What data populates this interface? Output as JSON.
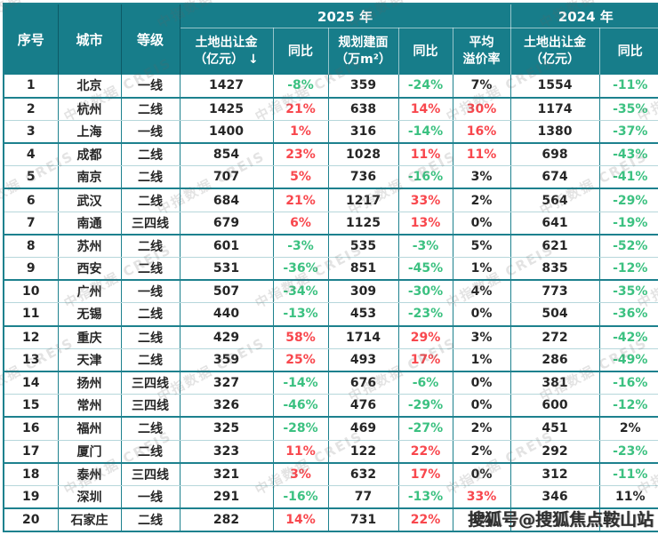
{
  "watermark": {
    "tile_text": "中指数据 CREIS",
    "overlay_text": "搜狐号@搜狐焦点鞍山站"
  },
  "colors": {
    "header_bg": "#177d8a",
    "border_teal": "#1d818e",
    "increase_red": "#f8474d",
    "decrease_green": "#3cc181",
    "text": "#262626"
  },
  "chart_data": {
    "type": "table",
    "group_headers": [
      {
        "label": "2025 年",
        "colspan": 5
      },
      {
        "label": "2024 年",
        "colspan": 2
      }
    ],
    "stub_headers": [
      "序号",
      "城市",
      "等级"
    ],
    "columns": {
      "land2025": {
        "line1": "土地出让金",
        "line2": "（亿元） ↓"
      },
      "yoy2025": {
        "label": "同比"
      },
      "area2025": {
        "line1": "规划建面",
        "line2": "（万m²）"
      },
      "area_yoy": {
        "label": "同比"
      },
      "premium": {
        "line1": "平均",
        "line2": "溢价率"
      },
      "land2024": {
        "line1": "土地出让金",
        "line2": "（亿元）"
      },
      "yoy2024": {
        "label": "同比"
      }
    },
    "rows": [
      {
        "no": "1",
        "city": "北京",
        "tier": "一线",
        "land2025": "1427",
        "yoy2025": "-8%",
        "yoy2025_tone": "down",
        "area2025": "359",
        "area_yoy": "-24%",
        "area_yoy_tone": "down",
        "premium": "7%",
        "premium_tone": "flat",
        "land2024": "1554",
        "yoy2024": "-11%",
        "yoy2024_tone": "down"
      },
      {
        "no": "2",
        "city": "杭州",
        "tier": "二线",
        "land2025": "1425",
        "yoy2025": "21%",
        "yoy2025_tone": "up",
        "area2025": "638",
        "area_yoy": "14%",
        "area_yoy_tone": "up",
        "premium": "30%",
        "premium_tone": "up",
        "land2024": "1174",
        "yoy2024": "-35%",
        "yoy2024_tone": "down"
      },
      {
        "no": "3",
        "city": "上海",
        "tier": "一线",
        "land2025": "1400",
        "yoy2025": "1%",
        "yoy2025_tone": "up",
        "area2025": "316",
        "area_yoy": "-14%",
        "area_yoy_tone": "down",
        "premium": "16%",
        "premium_tone": "up",
        "land2024": "1380",
        "yoy2024": "-37%",
        "yoy2024_tone": "down"
      },
      {
        "no": "4",
        "city": "成都",
        "tier": "二线",
        "land2025": "854",
        "yoy2025": "23%",
        "yoy2025_tone": "up",
        "area2025": "1028",
        "area_yoy": "11%",
        "area_yoy_tone": "up",
        "premium": "11%",
        "premium_tone": "up",
        "land2024": "698",
        "yoy2024": "-43%",
        "yoy2024_tone": "down"
      },
      {
        "no": "5",
        "city": "南京",
        "tier": "二线",
        "land2025": "707",
        "yoy2025": "5%",
        "yoy2025_tone": "up",
        "area2025": "736",
        "area_yoy": "-16%",
        "area_yoy_tone": "down",
        "premium": "3%",
        "premium_tone": "flat",
        "land2024": "674",
        "yoy2024": "-41%",
        "yoy2024_tone": "down"
      },
      {
        "no": "6",
        "city": "武汉",
        "tier": "二线",
        "land2025": "684",
        "yoy2025": "21%",
        "yoy2025_tone": "up",
        "area2025": "1217",
        "area_yoy": "33%",
        "area_yoy_tone": "up",
        "premium": "2%",
        "premium_tone": "flat",
        "land2024": "564",
        "yoy2024": "-29%",
        "yoy2024_tone": "down"
      },
      {
        "no": "7",
        "city": "南通",
        "tier": "三四线",
        "land2025": "679",
        "yoy2025": "6%",
        "yoy2025_tone": "up",
        "area2025": "1125",
        "area_yoy": "13%",
        "area_yoy_tone": "up",
        "premium": "0%",
        "premium_tone": "flat",
        "land2024": "641",
        "yoy2024": "-19%",
        "yoy2024_tone": "down"
      },
      {
        "no": "8",
        "city": "苏州",
        "tier": "二线",
        "land2025": "601",
        "yoy2025": "-3%",
        "yoy2025_tone": "down",
        "area2025": "535",
        "area_yoy": "-3%",
        "area_yoy_tone": "down",
        "premium": "5%",
        "premium_tone": "flat",
        "land2024": "621",
        "yoy2024": "-52%",
        "yoy2024_tone": "down"
      },
      {
        "no": "9",
        "city": "西安",
        "tier": "二线",
        "land2025": "531",
        "yoy2025": "-36%",
        "yoy2025_tone": "down",
        "area2025": "851",
        "area_yoy": "-45%",
        "area_yoy_tone": "down",
        "premium": "1%",
        "premium_tone": "flat",
        "land2024": "835",
        "yoy2024": "-12%",
        "yoy2024_tone": "down"
      },
      {
        "no": "10",
        "city": "广州",
        "tier": "一线",
        "land2025": "507",
        "yoy2025": "-34%",
        "yoy2025_tone": "down",
        "area2025": "309",
        "area_yoy": "-30%",
        "area_yoy_tone": "down",
        "premium": "4%",
        "premium_tone": "flat",
        "land2024": "773",
        "yoy2024": "-35%",
        "yoy2024_tone": "down"
      },
      {
        "no": "11",
        "city": "无锡",
        "tier": "二线",
        "land2025": "440",
        "yoy2025": "-13%",
        "yoy2025_tone": "down",
        "area2025": "453",
        "area_yoy": "-23%",
        "area_yoy_tone": "down",
        "premium": "0%",
        "premium_tone": "flat",
        "land2024": "504",
        "yoy2024": "-36%",
        "yoy2024_tone": "down"
      },
      {
        "no": "12",
        "city": "重庆",
        "tier": "二线",
        "land2025": "429",
        "yoy2025": "58%",
        "yoy2025_tone": "up",
        "area2025": "1714",
        "area_yoy": "29%",
        "area_yoy_tone": "up",
        "premium": "3%",
        "premium_tone": "flat",
        "land2024": "272",
        "yoy2024": "-42%",
        "yoy2024_tone": "down"
      },
      {
        "no": "13",
        "city": "天津",
        "tier": "二线",
        "land2025": "359",
        "yoy2025": "25%",
        "yoy2025_tone": "up",
        "area2025": "493",
        "area_yoy": "17%",
        "area_yoy_tone": "up",
        "premium": "1%",
        "premium_tone": "flat",
        "land2024": "286",
        "yoy2024": "-49%",
        "yoy2024_tone": "down"
      },
      {
        "no": "14",
        "city": "扬州",
        "tier": "三四线",
        "land2025": "327",
        "yoy2025": "-14%",
        "yoy2025_tone": "down",
        "area2025": "676",
        "area_yoy": "-6%",
        "area_yoy_tone": "down",
        "premium": "0%",
        "premium_tone": "flat",
        "land2024": "381",
        "yoy2024": "-16%",
        "yoy2024_tone": "down"
      },
      {
        "no": "15",
        "city": "常州",
        "tier": "三四线",
        "land2025": "326",
        "yoy2025": "-46%",
        "yoy2025_tone": "down",
        "area2025": "476",
        "area_yoy": "-29%",
        "area_yoy_tone": "down",
        "premium": "0%",
        "premium_tone": "flat",
        "land2024": "600",
        "yoy2024": "-12%",
        "yoy2024_tone": "down"
      },
      {
        "no": "16",
        "city": "福州",
        "tier": "二线",
        "land2025": "325",
        "yoy2025": "-28%",
        "yoy2025_tone": "down",
        "area2025": "469",
        "area_yoy": "-27%",
        "area_yoy_tone": "down",
        "premium": "2%",
        "premium_tone": "flat",
        "land2024": "451",
        "yoy2024": "2%",
        "yoy2024_tone": "flat"
      },
      {
        "no": "17",
        "city": "厦门",
        "tier": "二线",
        "land2025": "323",
        "yoy2025": "11%",
        "yoy2025_tone": "up",
        "area2025": "122",
        "area_yoy": "22%",
        "area_yoy_tone": "up",
        "premium": "2%",
        "premium_tone": "flat",
        "land2024": "292",
        "yoy2024": "-23%",
        "yoy2024_tone": "down"
      },
      {
        "no": "18",
        "city": "泰州",
        "tier": "三四线",
        "land2025": "321",
        "yoy2025": "3%",
        "yoy2025_tone": "up",
        "area2025": "632",
        "area_yoy": "17%",
        "area_yoy_tone": "up",
        "premium": "0%",
        "premium_tone": "flat",
        "land2024": "312",
        "yoy2024": "-11%",
        "yoy2024_tone": "down"
      },
      {
        "no": "19",
        "city": "深圳",
        "tier": "一线",
        "land2025": "291",
        "yoy2025": "-16%",
        "yoy2025_tone": "down",
        "area2025": "77",
        "area_yoy": "-13%",
        "area_yoy_tone": "down",
        "premium": "33%",
        "premium_tone": "up",
        "land2024": "346",
        "yoy2024": "11%",
        "yoy2024_tone": "flat"
      },
      {
        "no": "20",
        "city": "石家庄",
        "tier": "二线",
        "land2025": "282",
        "yoy2025": "14%",
        "yoy2025_tone": "up",
        "area2025": "731",
        "area_yoy": "22%",
        "area_yoy_tone": "up",
        "premium": "1%",
        "premium_tone": "flat",
        "land2024": "",
        "yoy2024": "",
        "yoy2024_tone": "flat"
      }
    ]
  }
}
